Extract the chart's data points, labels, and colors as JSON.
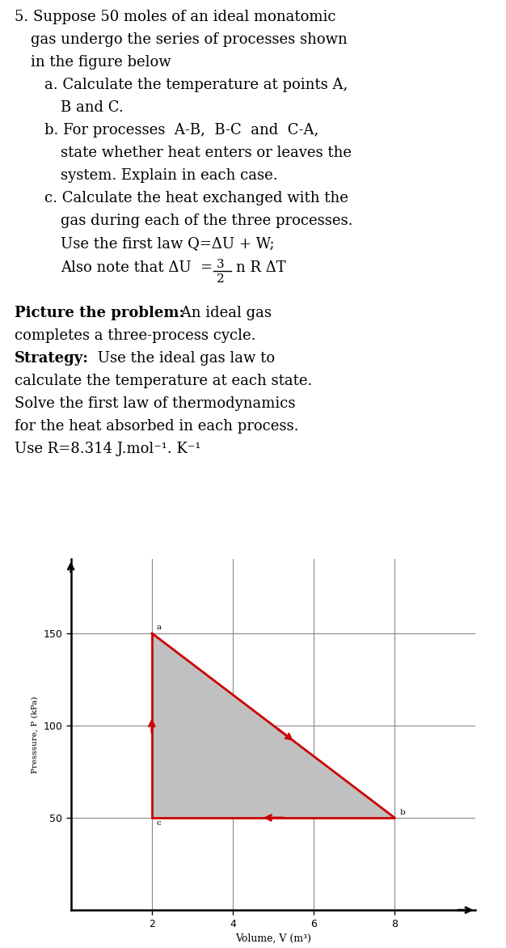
{
  "background_color": "#ffffff",
  "point_A": [
    2,
    150
  ],
  "point_B": [
    8,
    50
  ],
  "point_C": [
    2,
    50
  ],
  "triangle_color": "#c0c0c0",
  "triangle_alpha": 1.0,
  "line_color": "#cc0000",
  "line_width": 2.0,
  "grid_color": "#888888",
  "grid_linewidth": 0.8,
  "xlabel": "Volume, V (m³)",
  "ylabel": "Presssure, P (kPa)",
  "xlim": [
    0,
    10
  ],
  "ylim": [
    0,
    190
  ],
  "xticks": [
    2,
    4,
    6,
    8
  ],
  "yticks": [
    50,
    100,
    150
  ],
  "label_A": "a",
  "label_B": "b",
  "label_C": "c",
  "label_fontsize": 7.5,
  "fs_main": 13.0,
  "fs_small": 11.0
}
